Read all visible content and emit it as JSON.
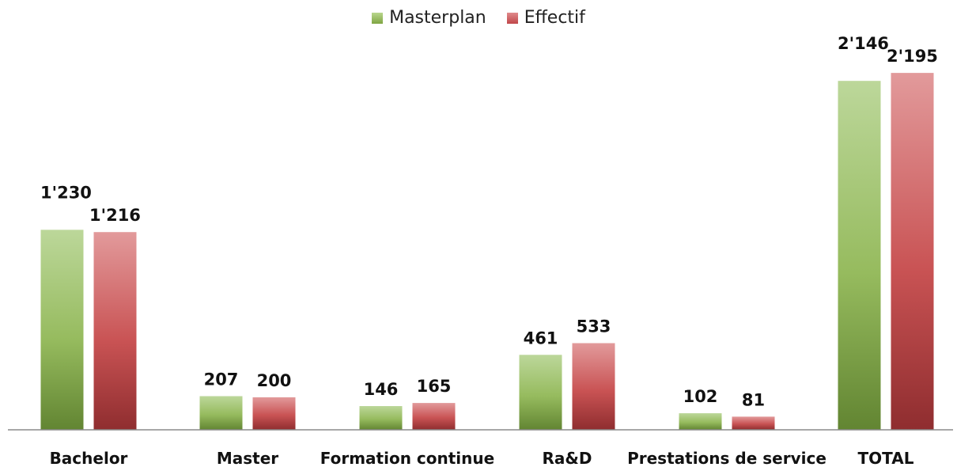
{
  "chart_data": {
    "type": "bar",
    "categories": [
      "Bachelor",
      "Master",
      "Formation continue",
      "Ra&D",
      "Prestations de service",
      "TOTAL"
    ],
    "series": [
      {
        "name": "Masterplan",
        "values": [
          1230,
          207,
          146,
          461,
          102,
          2146
        ],
        "labels": [
          "1'230",
          "207",
          "146",
          "461",
          "102",
          "2'146"
        ],
        "color": "#7fa542"
      },
      {
        "name": "Effectif",
        "values": [
          1216,
          200,
          165,
          533,
          81,
          2195
        ],
        "labels": [
          "1'216",
          "200",
          "165",
          "533",
          "81",
          "2'195"
        ],
        "color": "#c0474a"
      }
    ],
    "ylim": [
      0,
      2400
    ],
    "grid": false,
    "legend_position": "top-center",
    "title": "",
    "xlabel": "",
    "ylabel": ""
  }
}
